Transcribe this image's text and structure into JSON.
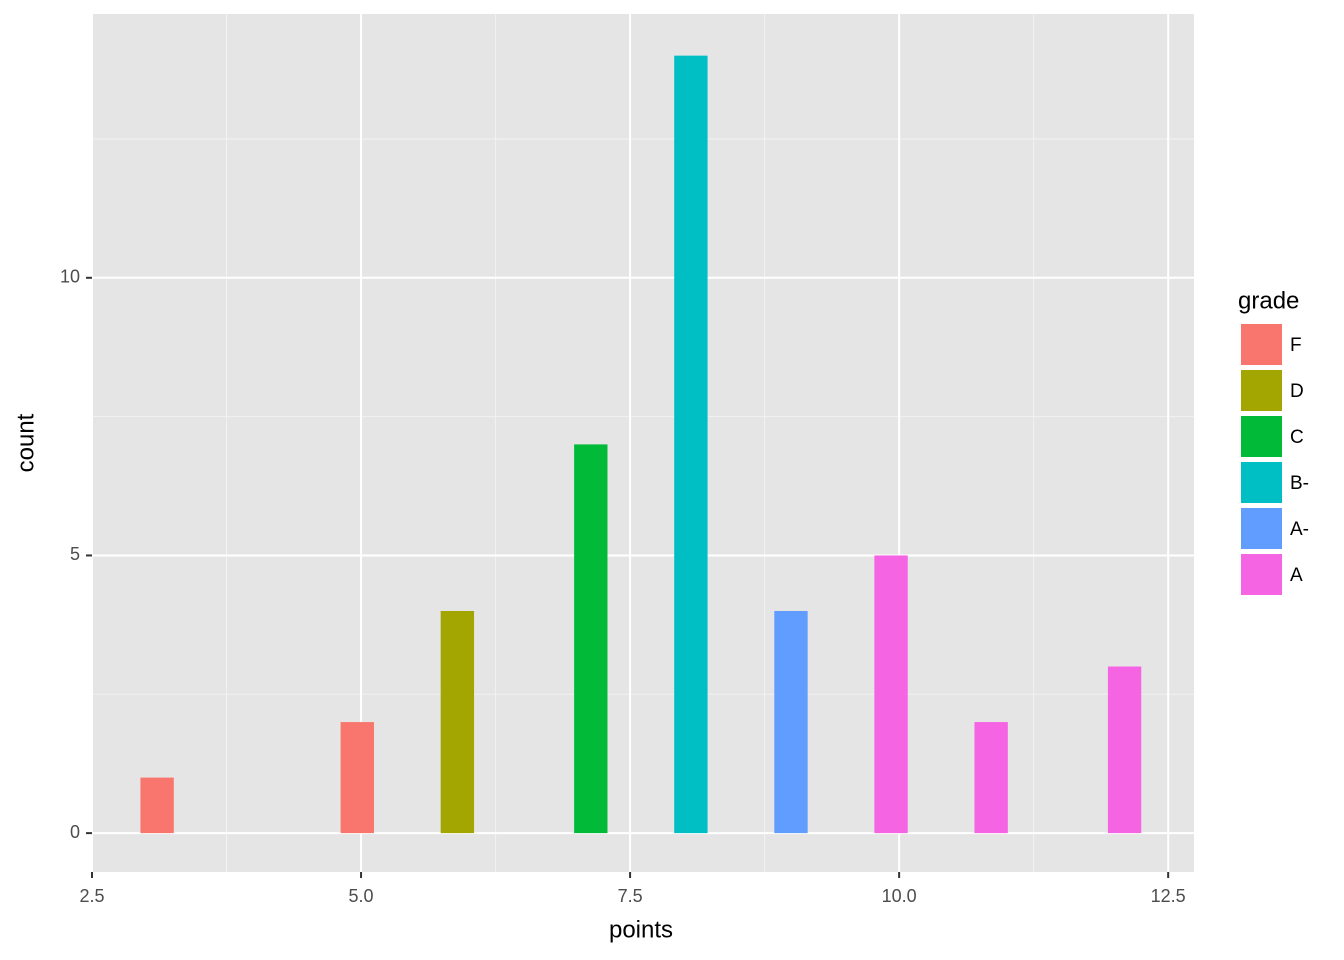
{
  "chart_data": {
    "type": "histogram",
    "x_label": "points",
    "y_label": "count",
    "legend_title": "grade",
    "bins": [
      2.95,
      3.26,
      3.57,
      3.88,
      4.19,
      4.5,
      4.81,
      5.12,
      5.43,
      5.74,
      6.05,
      6.36,
      6.67,
      6.98,
      7.29,
      7.6,
      7.91,
      8.22,
      8.53,
      8.84,
      9.15,
      9.46,
      9.77,
      10.08,
      10.39,
      10.7,
      11.01,
      11.32,
      11.63,
      11.94,
      12.25
    ],
    "series": [
      {
        "name": "F",
        "color": "#F8766D",
        "values": [
          1,
          0,
          0,
          0,
          0,
          0,
          2,
          0,
          0,
          0,
          0,
          0,
          0,
          0,
          0,
          0,
          0,
          0,
          0,
          0,
          0,
          0,
          0,
          0,
          0,
          0,
          0,
          0,
          0,
          0
        ]
      },
      {
        "name": "D",
        "color": "#A3A500",
        "values": [
          0,
          0,
          0,
          0,
          0,
          0,
          0,
          0,
          0,
          4,
          0,
          0,
          0,
          0,
          0,
          0,
          0,
          0,
          0,
          0,
          0,
          0,
          0,
          0,
          0,
          0,
          0,
          0,
          0,
          0
        ]
      },
      {
        "name": "C",
        "color": "#00BA38",
        "values": [
          0,
          0,
          0,
          0,
          0,
          0,
          0,
          0,
          0,
          0,
          0,
          0,
          0,
          7,
          0,
          0,
          0,
          0,
          0,
          0,
          0,
          0,
          0,
          0,
          0,
          0,
          0,
          0,
          0,
          0
        ]
      },
      {
        "name": "B-",
        "color": "#00BFC4",
        "values": [
          0,
          0,
          0,
          0,
          0,
          0,
          0,
          0,
          0,
          0,
          0,
          0,
          0,
          0,
          0,
          0,
          14,
          0,
          0,
          0,
          0,
          0,
          0,
          0,
          0,
          0,
          0,
          0,
          0,
          0
        ]
      },
      {
        "name": "A-",
        "color": "#619CFF",
        "values": [
          0,
          0,
          0,
          0,
          0,
          0,
          0,
          0,
          0,
          0,
          0,
          0,
          0,
          0,
          0,
          0,
          0,
          0,
          0,
          4,
          0,
          0,
          0,
          0,
          0,
          0,
          0,
          0,
          0,
          0
        ]
      },
      {
        "name": "A",
        "color": "#F564E3",
        "values": [
          0,
          0,
          0,
          0,
          0,
          0,
          0,
          0,
          0,
          0,
          0,
          0,
          0,
          0,
          0,
          0,
          0,
          0,
          0,
          0,
          0,
          0,
          5,
          0,
          0,
          2,
          0,
          0,
          0,
          3
        ]
      }
    ],
    "xlim": [
      2.5,
      12.74
    ],
    "xticks": [
      2.5,
      {
        "value": 5,
        "label": "5.0"
      },
      7.5,
      {
        "value": 10,
        "label": "10.0"
      },
      12.5
    ],
    "ylim": [
      -0.7,
      14.75
    ],
    "yticks": [
      0,
      5,
      10
    ],
    "grid": true,
    "legend_position": "right"
  }
}
